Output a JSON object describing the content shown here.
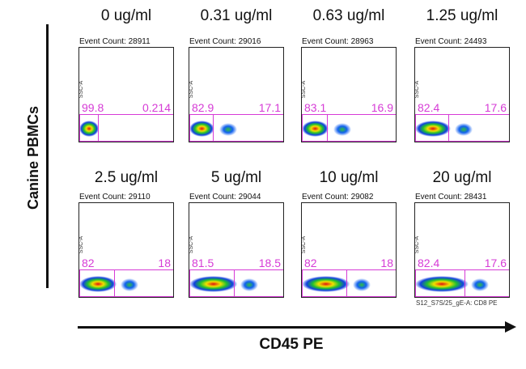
{
  "side_label": "Canine PBMCs",
  "x_axis_label": "CD45 PE",
  "y_axis_tag": "SSC-A",
  "x_axis_tag": "S12_S7S/25_gE-A: CD8 PE",
  "gate_color": "#d63bd6",
  "panels": [
    {
      "conc": "0 ug/ml",
      "event_count": "Event Count: 28911",
      "left_pct": "99.8",
      "right_pct": "0.214",
      "pos_fraction": 0.002
    },
    {
      "conc": "0.31 ug/ml",
      "event_count": "Event Count: 29016",
      "left_pct": "82.9",
      "right_pct": "17.1",
      "pos_fraction": 0.171
    },
    {
      "conc": "0.63 ug/ml",
      "event_count": "Event Count: 28963",
      "left_pct": "83.1",
      "right_pct": "16.9",
      "pos_fraction": 0.169
    },
    {
      "conc": "1.25 ug/ml",
      "event_count": "Event Count: 24493",
      "left_pct": "82.4",
      "right_pct": "17.6",
      "pos_fraction": 0.176
    },
    {
      "conc": "2.5 ug/ml",
      "event_count": "Event Count: 29110",
      "left_pct": "82",
      "right_pct": "18",
      "pos_fraction": 0.18
    },
    {
      "conc": "5 ug/ml",
      "event_count": "Event Count: 29044",
      "left_pct": "81.5",
      "right_pct": "18.5",
      "pos_fraction": 0.185
    },
    {
      "conc": "10 ug/ml",
      "event_count": "Event Count: 29082",
      "left_pct": "82",
      "right_pct": "18",
      "pos_fraction": 0.18
    },
    {
      "conc": "20 ug/ml",
      "event_count": "Event Count: 28431",
      "left_pct": "82.4",
      "right_pct": "17.6",
      "pos_fraction": 0.176
    }
  ]
}
